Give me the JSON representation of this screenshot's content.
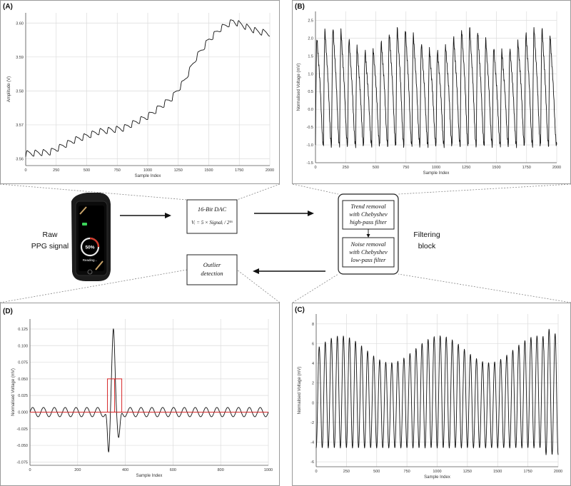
{
  "raw_label": [
    "Raw",
    "PPG signal"
  ],
  "filter_label": [
    "Filtering",
    "block"
  ],
  "boxes": {
    "dac_title": "16-Bit DAC",
    "dac_formula": "Vᵢ = 5 × Signalᵢ / 2¹⁶",
    "trend_removal": [
      "Trend removal",
      "with Chebyshev",
      "high-pass filter"
    ],
    "noise_removal": [
      "Noise removal",
      "with Chebyshev",
      "low-pass filter"
    ],
    "outlier": [
      "Outlier",
      "detection"
    ]
  },
  "device": {
    "percent": "50%",
    "status": "Reading..."
  },
  "colors": {
    "signal": "#111111",
    "outlier_box": "#d62728",
    "baseline": "#d62728",
    "grid": "#dcdcdc"
  },
  "chart_data": [
    {
      "panel": "(A)",
      "type": "line",
      "xlabel": "Sample Index",
      "ylabel": "Amplitude (V)",
      "xlim": [
        0,
        2000
      ],
      "ylim": [
        3.558,
        3.603
      ],
      "xticks": [
        0,
        250,
        500,
        750,
        1000,
        1250,
        1500,
        1750,
        2000
      ],
      "yticks": [
        3.56,
        3.57,
        3.58,
        3.59,
        3.6
      ],
      "ytick_labels": [
        "3.56",
        "3.57",
        "3.58",
        "3.59",
        "3.60"
      ],
      "trend_points": [
        [
          0,
          3.5615
        ],
        [
          200,
          3.562
        ],
        [
          400,
          3.5655
        ],
        [
          600,
          3.568
        ],
        [
          800,
          3.569
        ],
        [
          1000,
          3.5725
        ],
        [
          1200,
          3.578
        ],
        [
          1300,
          3.583
        ],
        [
          1400,
          3.59
        ],
        [
          1500,
          3.595
        ],
        [
          1600,
          3.5985
        ],
        [
          1700,
          3.6005
        ],
        [
          1800,
          3.599
        ],
        [
          1900,
          3.5975
        ],
        [
          2000,
          3.597
        ]
      ],
      "oscillation_amplitude": 0.0018,
      "cycles": 30
    },
    {
      "panel": "(B)",
      "type": "line",
      "xlabel": "Sample Index",
      "ylabel": "Normalised Voltage (mV)",
      "xlim": [
        0,
        2000
      ],
      "ylim": [
        -1.5,
        2.75
      ],
      "xticks": [
        0,
        250,
        500,
        750,
        1000,
        1250,
        1500,
        1750,
        2000
      ],
      "yticks": [
        -1.5,
        -1.0,
        -0.5,
        0.0,
        0.5,
        1.0,
        1.5,
        2.0,
        2.5
      ],
      "ytick_labels": [
        "-1.5",
        "-1.0",
        "-0.5",
        "0.0",
        "0.5",
        "1.0",
        "1.5",
        "2.0",
        "2.5"
      ],
      "cycles": 30,
      "peak": 2.3,
      "trough": -1.0
    },
    {
      "panel": "(C)",
      "type": "line",
      "xlabel": "Sample Index",
      "ylabel": "Normalised Voltage (mV)",
      "xlim": [
        0,
        2000
      ],
      "ylim": [
        -6.5,
        9
      ],
      "xticks": [
        0,
        250,
        500,
        750,
        1000,
        1250,
        1500,
        1750,
        2000
      ],
      "yticks": [
        -6,
        -4,
        -2,
        0,
        2,
        4,
        6,
        8
      ],
      "ytick_labels": [
        "-6",
        "-4",
        "-2",
        "0",
        "2",
        "4",
        "6",
        "8"
      ],
      "cycles": 40,
      "peak": 6.8,
      "trough": -4.6
    },
    {
      "panel": "(D)",
      "type": "line",
      "xlabel": "Sample Index",
      "ylabel": "Normalised Voltage (mV)",
      "xlim": [
        0,
        1000
      ],
      "ylim": [
        -0.08,
        0.14
      ],
      "xticks": [
        0,
        200,
        400,
        600,
        800,
        1000
      ],
      "yticks": [
        -0.075,
        -0.05,
        -0.025,
        0.0,
        0.025,
        0.05,
        0.075,
        0.1,
        0.125
      ],
      "ytick_labels": [
        "-0.075",
        "-0.050",
        "-0.025",
        "0.000",
        "0.025",
        "0.050",
        "0.075",
        "0.100",
        "0.125"
      ],
      "baseline_oscillation": 0.007,
      "cycles": 22,
      "spike": {
        "x": 350,
        "peak": 0.132,
        "trough": -0.068
      },
      "outlier_box": {
        "x0": 325,
        "x1": 385,
        "y0": 0.0,
        "y1": 0.05,
        "split_x": 355
      }
    }
  ]
}
